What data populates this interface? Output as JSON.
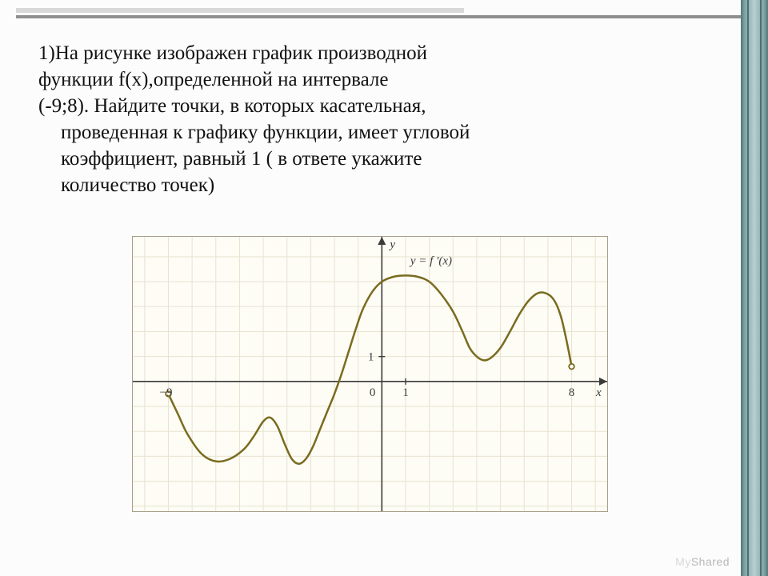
{
  "problem": {
    "line1": "1)На рисунке изображен график производной",
    "line2": "функции f(x),определенной на интервале",
    "line3": "(-9;8). Найдите точки, в которых касательная,",
    "line4": "проведенная к графику функции, имеет угловой",
    "line5": "коэффициент, равный 1 ( в ответе укажите",
    "line6": "количество точек)"
  },
  "graph": {
    "type": "line",
    "xlim": [
      -10.5,
      9.5
    ],
    "ylim": [
      -5.2,
      5.8
    ],
    "grid_step": 1,
    "background_color": "#fdfcf5",
    "grid_color": "#e8e3d0",
    "axis_color": "#3a3a3a",
    "curve_color": "#7a6b1f",
    "curve_width": 2.5,
    "axis_labels": {
      "x": "x",
      "y": "y"
    },
    "function_label": "y = f ′(x)",
    "tick_labels": {
      "x_neg9": "−9",
      "x_1": "1",
      "x_8": "8",
      "y_1": "1",
      "origin": "0"
    },
    "tick_fontsize": 15,
    "label_fontsize": 15,
    "open_endpoint_color": "#fdfcf5",
    "open_endpoint_stroke": "#7a6b1f",
    "curve_points": [
      [
        -9,
        -0.5
      ],
      [
        -8.6,
        -1.3
      ],
      [
        -8.2,
        -2.1
      ],
      [
        -7.6,
        -2.9
      ],
      [
        -7.0,
        -3.2
      ],
      [
        -6.4,
        -3.1
      ],
      [
        -5.8,
        -2.7
      ],
      [
        -5.4,
        -2.2
      ],
      [
        -5.0,
        -1.6
      ],
      [
        -4.7,
        -1.45
      ],
      [
        -4.4,
        -1.8
      ],
      [
        -4.1,
        -2.5
      ],
      [
        -3.8,
        -3.1
      ],
      [
        -3.5,
        -3.3
      ],
      [
        -3.2,
        -3.1
      ],
      [
        -2.9,
        -2.6
      ],
      [
        -2.6,
        -1.9
      ],
      [
        -2.3,
        -1.2
      ],
      [
        -2.0,
        -0.5
      ],
      [
        -1.7,
        0.3
      ],
      [
        -1.4,
        1.2
      ],
      [
        -1.1,
        2.1
      ],
      [
        -0.8,
        2.9
      ],
      [
        -0.4,
        3.6
      ],
      [
        0.0,
        4.0
      ],
      [
        0.5,
        4.2
      ],
      [
        1.0,
        4.25
      ],
      [
        1.5,
        4.2
      ],
      [
        2.0,
        4.0
      ],
      [
        2.5,
        3.5
      ],
      [
        3.0,
        2.8
      ],
      [
        3.4,
        2.0
      ],
      [
        3.7,
        1.35
      ],
      [
        4.0,
        1.0
      ],
      [
        4.3,
        0.85
      ],
      [
        4.6,
        0.95
      ],
      [
        5.0,
        1.35
      ],
      [
        5.4,
        2.0
      ],
      [
        5.8,
        2.7
      ],
      [
        6.2,
        3.25
      ],
      [
        6.6,
        3.55
      ],
      [
        7.0,
        3.5
      ],
      [
        7.3,
        3.2
      ],
      [
        7.55,
        2.6
      ],
      [
        7.75,
        1.8
      ],
      [
        7.9,
        1.1
      ],
      [
        8.0,
        0.6
      ]
    ]
  },
  "watermark": {
    "my": "My",
    "shared": "Shared"
  },
  "colors": {
    "sidebar_gradient": [
      "#6a8d8f",
      "#b8cfd0"
    ],
    "top_bar_light": "#d8d8d8",
    "top_bar_dark": "#8f8f8f"
  }
}
